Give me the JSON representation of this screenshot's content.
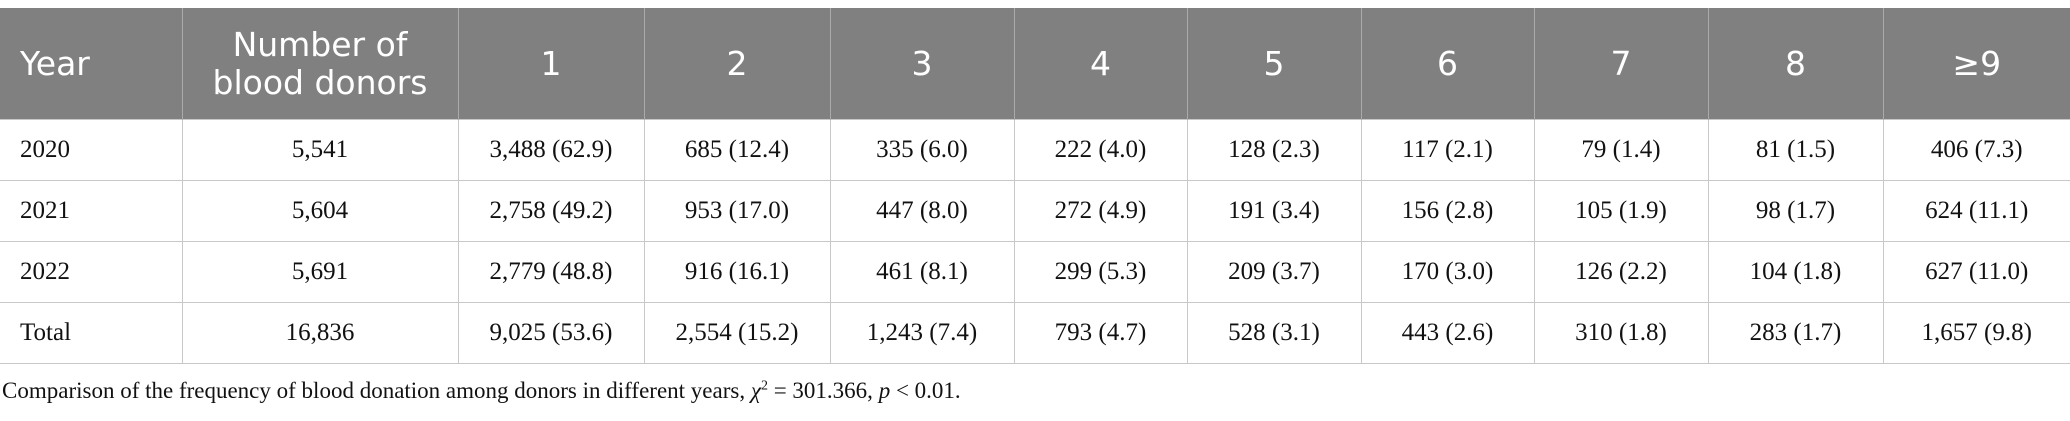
{
  "table": {
    "header": [
      "Year",
      "Number of blood donors",
      "1",
      "2",
      "3",
      "4",
      "5",
      "6",
      "7",
      "8",
      "≥9"
    ],
    "rows": [
      [
        "2020",
        "5,541",
        "3,488 (62.9)",
        "685 (12.4)",
        "335 (6.0)",
        "222 (4.0)",
        "128 (2.3)",
        "117 (2.1)",
        "79 (1.4)",
        "81 (1.5)",
        "406 (7.3)"
      ],
      [
        "2021",
        "5,604",
        "2,758 (49.2)",
        "953 (17.0)",
        "447 (8.0)",
        "272 (4.9)",
        "191 (3.4)",
        "156 (2.8)",
        "105 (1.9)",
        "98 (1.7)",
        "624 (11.1)"
      ],
      [
        "2022",
        "5,691",
        "2,779 (48.8)",
        "916 (16.1)",
        "461 (8.1)",
        "299 (5.3)",
        "209 (3.7)",
        "170 (3.0)",
        "126 (2.2)",
        "104 (1.8)",
        "627 (11.0)"
      ],
      [
        "Total",
        "16,836",
        "9,025 (53.6)",
        "2,554 (15.2)",
        "1,243 (7.4)",
        "793 (4.7)",
        "528 (3.1)",
        "443 (2.6)",
        "310 (1.8)",
        "283 (1.7)",
        "1,657 (9.8)"
      ]
    ]
  },
  "footnote": {
    "text1": "Comparison of the frequency of blood donation among donors in different years, ",
    "chi": "χ",
    "sup": "2",
    "text2": " = 301.366, ",
    "p": "p",
    "text3": " < 0.01."
  }
}
